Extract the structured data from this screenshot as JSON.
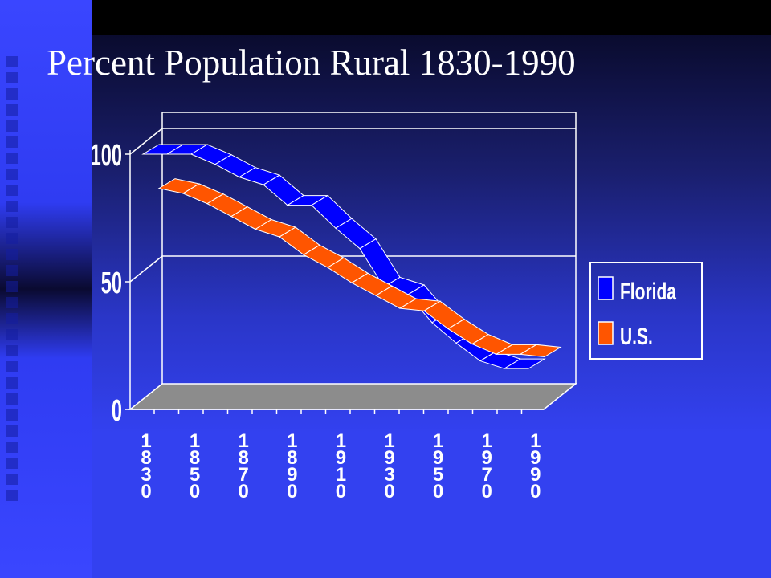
{
  "slide": {
    "title": "Percent Population Rural 1830-1990"
  },
  "colors": {
    "background": "#3341f0",
    "florida": "#0000ff",
    "us": "#ff5500",
    "floor": "#8c8c8c",
    "text": "#ffffff"
  },
  "chart_data": {
    "type": "line",
    "style": "3d-ribbon",
    "title": "Percent Population Rural 1830-1990",
    "xlabel": "",
    "ylabel": "",
    "ylim": [
      0,
      100
    ],
    "yticks": [
      "0",
      "50",
      "100"
    ],
    "xticks": [
      "1830",
      "1850",
      "1870",
      "1890",
      "1910",
      "1930",
      "1950",
      "1970",
      "1990"
    ],
    "x": [
      "1830",
      "1840",
      "1850",
      "1860",
      "1870",
      "1880",
      "1890",
      "1900",
      "1910",
      "1920",
      "1930",
      "1940",
      "1950",
      "1960",
      "1970",
      "1980",
      "1990"
    ],
    "grid": true,
    "legend": "right",
    "series": [
      {
        "name": "Florida",
        "color": "#0000ff",
        "values": [
          100,
          100,
          100,
          96,
          91,
          88,
          80,
          80,
          71,
          63,
          48,
          45,
          34,
          26,
          19,
          16,
          16
        ]
      },
      {
        "name": "U.S.",
        "color": "#ff5500",
        "values": [
          91,
          89,
          85,
          80,
          75,
          72,
          65,
          60,
          54,
          49,
          44,
          43,
          36,
          30,
          26,
          26,
          25
        ]
      }
    ]
  }
}
